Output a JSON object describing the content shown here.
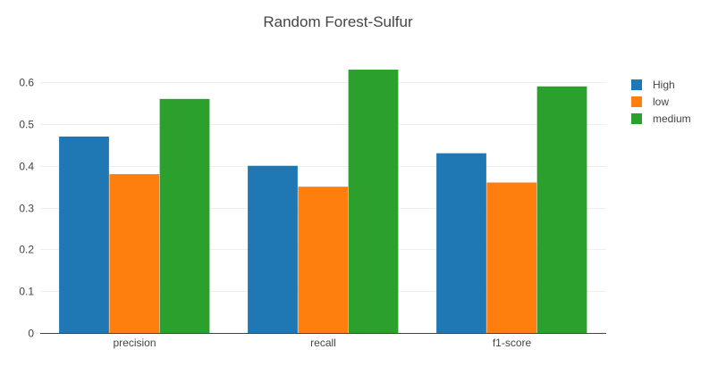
{
  "chart_data": {
    "type": "bar",
    "title": "Random Forest-Sulfur",
    "xlabel": "",
    "ylabel": "",
    "categories": [
      "precision",
      "recall",
      "f1-score"
    ],
    "series": [
      {
        "name": "High",
        "color": "#1f77b4",
        "values": [
          0.47,
          0.4,
          0.43
        ]
      },
      {
        "name": "low",
        "color": "#ff7f0e",
        "values": [
          0.38,
          0.35,
          0.36
        ]
      },
      {
        "name": "medium",
        "color": "#2ca02c",
        "values": [
          0.56,
          0.63,
          0.59
        ]
      }
    ],
    "ylim": [
      0,
      0.66
    ],
    "yticks": [
      0,
      0.1,
      0.2,
      0.3,
      0.4,
      0.5,
      0.6
    ],
    "ytick_labels": [
      "0",
      "0.1",
      "0.2",
      "0.3",
      "0.4",
      "0.5",
      "0.6"
    ],
    "grid": true,
    "legend_position": "top-right"
  }
}
